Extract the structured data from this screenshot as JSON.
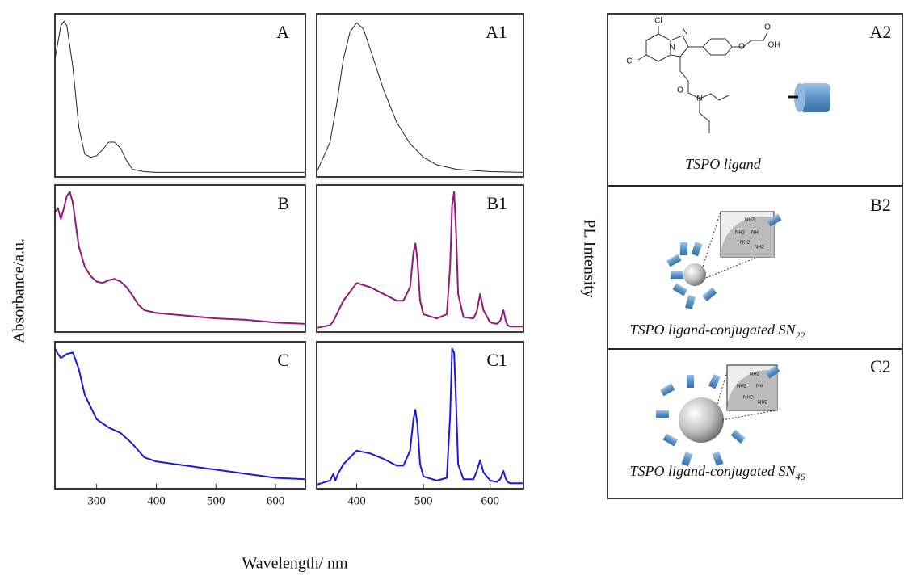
{
  "figure": {
    "xlabel": "Wavelength/ nm",
    "ylabel_left": "Absorbance/a.u.",
    "ylabel_right": "PL Intensity"
  },
  "chart_data": [
    {
      "type": "line",
      "title": "A",
      "xlim": [
        230,
        650
      ],
      "ylim": [
        -0.03,
        1.05
      ],
      "series": [
        {
          "color": "#222222",
          "x": [
            230,
            240,
            245,
            250,
            260,
            270,
            280,
            290,
            300,
            310,
            320,
            330,
            340,
            350,
            360,
            380,
            400,
            450,
            500,
            600,
            650
          ],
          "values": [
            0.75,
            0.97,
            1.0,
            0.97,
            0.7,
            0.3,
            0.12,
            0.1,
            0.11,
            0.15,
            0.2,
            0.2,
            0.16,
            0.08,
            0.02,
            0.005,
            0,
            0,
            0,
            0,
            0
          ]
        }
      ]
    },
    {
      "type": "line",
      "title": "B",
      "xlim": [
        230,
        650
      ],
      "ylim": [
        -0.03,
        1.05
      ],
      "series": [
        {
          "color": "#8e1a7a",
          "x": [
            230,
            235,
            240,
            245,
            250,
            255,
            260,
            270,
            280,
            290,
            300,
            310,
            320,
            330,
            340,
            350,
            360,
            370,
            380,
            400,
            450,
            500,
            550,
            600,
            650
          ],
          "values": [
            0.85,
            0.88,
            0.8,
            0.88,
            0.97,
            1.0,
            0.92,
            0.6,
            0.45,
            0.38,
            0.34,
            0.33,
            0.35,
            0.36,
            0.34,
            0.3,
            0.24,
            0.17,
            0.13,
            0.11,
            0.09,
            0.07,
            0.06,
            0.04,
            0.03
          ]
        }
      ]
    },
    {
      "type": "line",
      "title": "C",
      "xlim": [
        230,
        650
      ],
      "ylim": [
        -0.03,
        1.05
      ],
      "xticks": [
        300,
        400,
        500,
        600
      ],
      "series": [
        {
          "color": "#1a1ad8",
          "x": [
            230,
            235,
            240,
            250,
            260,
            270,
            280,
            300,
            320,
            340,
            360,
            380,
            400,
            450,
            500,
            550,
            600,
            650
          ],
          "values": [
            1.0,
            0.96,
            0.93,
            0.96,
            0.97,
            0.85,
            0.66,
            0.48,
            0.42,
            0.38,
            0.3,
            0.2,
            0.17,
            0.14,
            0.11,
            0.08,
            0.05,
            0.04
          ]
        }
      ]
    },
    {
      "type": "line",
      "title": "A1",
      "xlim": [
        340,
        650
      ],
      "ylim": [
        -0.03,
        1.05
      ],
      "series": [
        {
          "color": "#222222",
          "x": [
            340,
            360,
            370,
            380,
            390,
            400,
            410,
            420,
            440,
            460,
            480,
            500,
            520,
            550,
            600,
            650
          ],
          "values": [
            0,
            0.2,
            0.45,
            0.75,
            0.93,
            0.99,
            0.95,
            0.82,
            0.55,
            0.33,
            0.19,
            0.1,
            0.05,
            0.02,
            0.005,
            0
          ]
        }
      ]
    },
    {
      "type": "line",
      "title": "B1",
      "xlim": [
        340,
        650
      ],
      "ylim": [
        -0.03,
        1.05
      ],
      "series": [
        {
          "color": "#8e1a7a",
          "x": [
            340,
            360,
            365,
            370,
            380,
            400,
            420,
            440,
            460,
            470,
            480,
            485,
            488,
            491,
            495,
            500,
            520,
            535,
            540,
            543,
            546,
            549,
            552,
            560,
            575,
            580,
            585,
            590,
            600,
            610,
            615,
            620,
            623,
            626,
            630,
            650
          ],
          "values": [
            0,
            0.02,
            0.05,
            0.1,
            0.2,
            0.33,
            0.3,
            0.25,
            0.2,
            0.2,
            0.3,
            0.55,
            0.62,
            0.5,
            0.2,
            0.1,
            0.07,
            0.1,
            0.45,
            0.9,
            1.0,
            0.7,
            0.25,
            0.08,
            0.07,
            0.12,
            0.25,
            0.13,
            0.04,
            0.03,
            0.05,
            0.13,
            0.06,
            0.02,
            0.01,
            0.01
          ]
        }
      ]
    },
    {
      "type": "line",
      "title": "C1",
      "xlim": [
        340,
        650
      ],
      "ylim": [
        -0.03,
        1.05
      ],
      "xticks": [
        400,
        500,
        600
      ],
      "series": [
        {
          "color": "#1a1ad8",
          "x": [
            340,
            360,
            365,
            368,
            372,
            380,
            400,
            420,
            440,
            460,
            470,
            480,
            485,
            488,
            491,
            495,
            500,
            520,
            535,
            540,
            543,
            546,
            549,
            552,
            560,
            575,
            580,
            585,
            590,
            600,
            610,
            615,
            620,
            623,
            626,
            630,
            650
          ],
          "values": [
            0,
            0.03,
            0.08,
            0.03,
            0.08,
            0.15,
            0.25,
            0.23,
            0.19,
            0.14,
            0.14,
            0.25,
            0.48,
            0.55,
            0.44,
            0.15,
            0.06,
            0.03,
            0.05,
            0.5,
            1.0,
            0.97,
            0.6,
            0.15,
            0.04,
            0.04,
            0.1,
            0.18,
            0.09,
            0.03,
            0.02,
            0.04,
            0.1,
            0.05,
            0.02,
            0.01,
            0.01
          ]
        }
      ]
    }
  ],
  "panels": [
    {
      "label": "A2",
      "caption": "TSPO ligand",
      "atoms": [
        "Cl",
        "Cl",
        "N",
        "N",
        "O",
        "N",
        "O",
        "O",
        "OH"
      ]
    },
    {
      "label": "B2",
      "caption": "TSPO ligand-conjugated SN",
      "subscript": "22",
      "inset": [
        "NH2",
        "NH2",
        "NH2",
        "NH2",
        "NH"
      ]
    },
    {
      "label": "C2",
      "caption": "TSPO ligand-conjugated SN",
      "subscript": "46",
      "inset": [
        "NH2",
        "NH2",
        "NH2",
        "NH2",
        "NH"
      ]
    }
  ]
}
